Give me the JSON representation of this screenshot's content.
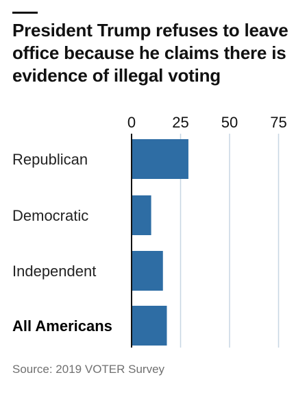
{
  "title": "President Trump refuses to leave office because he claims there is evidence of illegal voting",
  "source": "Source: 2019 VOTER Survey",
  "colors": {
    "bar": "#2E6DA4",
    "grid": "#C7D6E3",
    "zero_line": "#111111",
    "text": "#111111"
  },
  "chart_data": {
    "type": "bar",
    "orientation": "horizontal",
    "title": "President Trump refuses to leave office because he claims there is evidence of illegal voting",
    "categories": [
      "Republican",
      "Democratic",
      "Independent",
      "All Americans"
    ],
    "values": [
      29,
      10,
      16,
      18
    ],
    "xlim": [
      0,
      80
    ],
    "ticks": [
      0,
      25,
      50,
      75
    ],
    "tick_labels": [
      "0",
      "25",
      "50",
      "75"
    ],
    "axis_position": "top",
    "grid": true,
    "bold_categories": [
      "All Americans"
    ]
  }
}
